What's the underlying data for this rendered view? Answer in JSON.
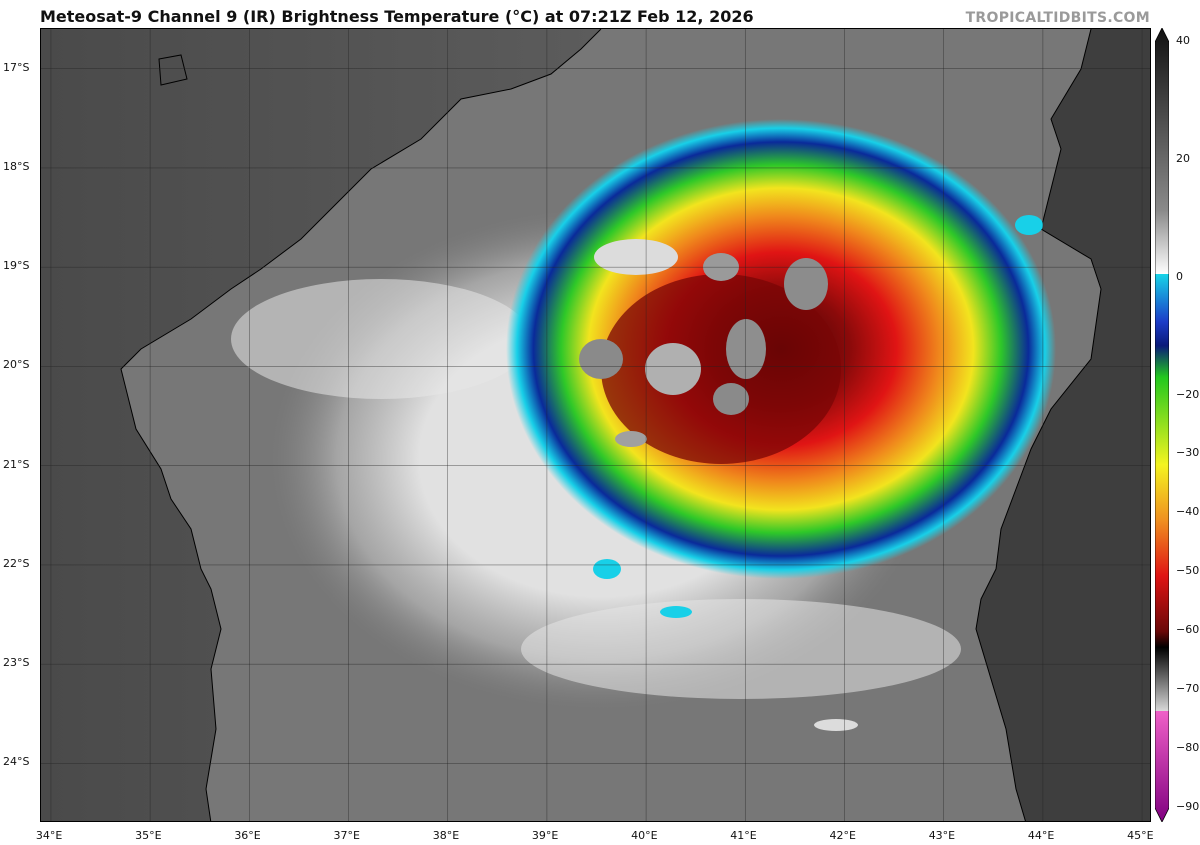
{
  "header": {
    "title": "Meteosat-9 Channel 9 (IR) Brightness Temperature (°C) at 07:21Z Feb 12, 2026",
    "credit": "TROPICALTIDBITS.COM"
  },
  "map": {
    "lat_labels": [
      "17°S",
      "18°S",
      "19°S",
      "20°S",
      "21°S",
      "22°S",
      "23°S",
      "24°S"
    ],
    "lon_labels": [
      "34°E",
      "35°E",
      "36°E",
      "37°E",
      "38°E",
      "39°E",
      "40°E",
      "41°E",
      "42°E",
      "43°E",
      "44°E",
      "45°E"
    ],
    "lon_range": [
      33.9,
      45.1
    ],
    "lat_range": [
      -16.6,
      -24.6
    ],
    "storm_center": {
      "lon": 40.9,
      "lat": -19.9
    }
  },
  "colorbar": {
    "units": "°C",
    "range": [
      -90,
      40
    ],
    "tick_labels": [
      "40",
      "20",
      "0",
      "−20",
      "−30",
      "−40",
      "−50",
      "−60",
      "−70",
      "−80",
      "−90"
    ],
    "tick_values": [
      40,
      20,
      0,
      -20,
      -30,
      -40,
      -50,
      -60,
      -70,
      -80,
      -90
    ],
    "colors": {
      "warm_max": "#111111",
      "gray_mid": "#8a8a8a",
      "white": "#ffffff",
      "cyan": "#18d4e8",
      "blue": "#1c3cc8",
      "navy": "#0a1a7a",
      "green": "#22c81e",
      "yellow": "#f4f420",
      "orange": "#f09020",
      "red": "#e01414",
      "dark_red": "#6a0808",
      "black": "#000000",
      "light_gray": "#d8d8d8",
      "pink": "#f060c8",
      "purple": "#800080"
    }
  }
}
